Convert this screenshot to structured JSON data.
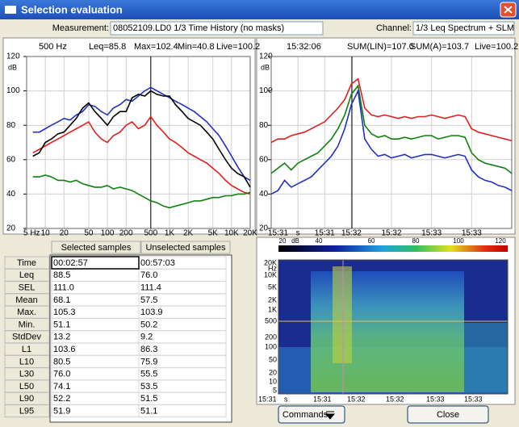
{
  "window": {
    "title": "Selection evaluation"
  },
  "measurement": {
    "label": "Measurement:",
    "value": "08052109.LD0 1/3 Time History (no masks)"
  },
  "channel": {
    "label": "Channel:",
    "value": "1/3 Leq Spectrum + SLM"
  },
  "spectrum_chart": {
    "type": "line",
    "xlog": true,
    "grid": true,
    "header": [
      {
        "text": "500 Hz",
        "color": "#000000"
      },
      {
        "text": "Leq=85.8",
        "color": "#e02020"
      },
      {
        "text": "Max=102.4",
        "color": "#2030c0"
      },
      {
        "text": "Min=40.8",
        "color": "#108010"
      },
      {
        "text": "Live=100.2",
        "color": "#000000"
      }
    ],
    "ylabel": "dB",
    "ylim": [
      20,
      120
    ],
    "yticks": [
      20,
      40,
      60,
      80,
      100,
      120
    ],
    "xlim": [
      5,
      20000
    ],
    "xticks": [
      {
        "value": 5,
        "label": "5 Hz"
      },
      10,
      20,
      50,
      100,
      200,
      500,
      {
        "value": 1000,
        "label": "1K"
      },
      {
        "value": 2000,
        "label": "2K"
      },
      {
        "value": 5000,
        "label": "5K"
      },
      {
        "value": 10000,
        "label": "10K"
      },
      {
        "value": 20000,
        "label": "20K"
      }
    ],
    "x": [
      6.3,
      8,
      10,
      12.5,
      16,
      20,
      25,
      31.5,
      40,
      50,
      63,
      80,
      100,
      125,
      160,
      200,
      250,
      315,
      400,
      500,
      630,
      800,
      1000,
      1250,
      1600,
      2000,
      2500,
      3150,
      4000,
      5000,
      6300,
      8000,
      10000,
      12500,
      16000,
      20000
    ],
    "series": [
      {
        "color": "#2030c0",
        "values": [
          76,
          76,
          78,
          80,
          82,
          84,
          83,
          86,
          88,
          92,
          91,
          88,
          86,
          90,
          92,
          95,
          94,
          97,
          100,
          102,
          100,
          98,
          96,
          94,
          92,
          90,
          88,
          85,
          82,
          78,
          74,
          68,
          62,
          56,
          50,
          48
        ]
      },
      {
        "color": "#e02020",
        "values": [
          64,
          66,
          68,
          70,
          72,
          74,
          76,
          78,
          80,
          82,
          76,
          72,
          70,
          74,
          76,
          80,
          82,
          78,
          80,
          85,
          80,
          76,
          72,
          70,
          67,
          64,
          62,
          60,
          58,
          55,
          52,
          48,
          45,
          43,
          41,
          40
        ]
      },
      {
        "color": "#108010",
        "values": [
          50,
          50,
          51,
          50,
          48,
          48,
          47,
          48,
          46,
          45,
          44,
          44,
          45,
          43,
          44,
          43,
          42,
          40,
          38,
          36,
          35,
          33,
          32,
          33,
          34,
          35,
          36,
          36,
          37,
          38,
          38,
          39,
          39,
          40,
          40,
          41
        ]
      },
      {
        "color": "#000000",
        "values": [
          62,
          64,
          70,
          72,
          75,
          76,
          80,
          84,
          90,
          93,
          88,
          84,
          80,
          85,
          88,
          88,
          96,
          98,
          97,
          100,
          98,
          97,
          97,
          92,
          88,
          84,
          82,
          80,
          76,
          72,
          66,
          60,
          55,
          52,
          50,
          44
        ]
      }
    ]
  },
  "time_chart": {
    "type": "line",
    "xlog": false,
    "grid": true,
    "header": [
      {
        "text": "15:32:06",
        "color": "#000000"
      },
      {
        "text": "SUM(LIN)=107.0",
        "color": "#e02020"
      },
      {
        "text": "SUM(A)=103.7",
        "color": "#108010"
      },
      {
        "text": "Live=100.2",
        "color": "#2030c0"
      }
    ],
    "ylabel": "dB",
    "ylim": [
      20,
      120
    ],
    "yticks": [
      20,
      40,
      60,
      80,
      100,
      120
    ],
    "xlim": [
      0,
      180
    ],
    "xticks": [
      {
        "value": 0,
        "label": "15:31"
      },
      {
        "value": 20,
        "label": "s"
      },
      {
        "value": 40,
        "label": "15:31"
      },
      {
        "value": 60,
        "label": "15:32"
      },
      {
        "value": 90,
        "label": "15:32"
      },
      {
        "value": 120,
        "label": "15:33"
      },
      {
        "value": 150,
        "label": "15:33"
      }
    ],
    "x": [
      0,
      5,
      10,
      15,
      20,
      25,
      30,
      35,
      40,
      45,
      50,
      55,
      60,
      65,
      70,
      75,
      80,
      85,
      90,
      95,
      100,
      105,
      110,
      115,
      120,
      125,
      130,
      135,
      140,
      145,
      150,
      155,
      160,
      165,
      170,
      175,
      180
    ],
    "series": [
      {
        "color": "#e02020",
        "values": [
          70,
          72,
          72,
          74,
          75,
          76,
          78,
          80,
          82,
          86,
          90,
          95,
          104,
          107,
          90,
          86,
          85,
          86,
          85,
          84,
          85,
          84,
          85,
          85,
          86,
          85,
          84,
          85,
          86,
          85,
          78,
          76,
          75,
          74,
          73,
          72,
          71
        ]
      },
      {
        "color": "#108010",
        "values": [
          52,
          55,
          58,
          54,
          58,
          60,
          62,
          64,
          68,
          72,
          78,
          86,
          98,
          103,
          80,
          75,
          73,
          74,
          72,
          72,
          73,
          72,
          73,
          74,
          74,
          72,
          73,
          74,
          74,
          73,
          64,
          60,
          58,
          57,
          56,
          55,
          52
        ]
      },
      {
        "color": "#2030c0",
        "values": [
          40,
          42,
          48,
          44,
          46,
          48,
          50,
          54,
          58,
          62,
          68,
          78,
          92,
          100,
          72,
          66,
          62,
          63,
          61,
          62,
          63,
          61,
          62,
          63,
          63,
          62,
          61,
          62,
          63,
          62,
          54,
          50,
          48,
          47,
          45,
          44,
          42
        ]
      }
    ]
  },
  "table": {
    "headers": [
      "Selected samples",
      "Unselected samples"
    ],
    "rows": [
      [
        "Time",
        "00:02:57",
        "00:57:03"
      ],
      [
        "Leq",
        "88.5",
        "76.0"
      ],
      [
        "SEL",
        "111.0",
        "111.4"
      ],
      [
        "Mean",
        "68.1",
        "57.5"
      ],
      [
        "Max.",
        "105.3",
        "103.9"
      ],
      [
        "Min.",
        "51.1",
        "50.2"
      ],
      [
        "StdDev",
        "13.2",
        "9.2"
      ],
      [
        "L1",
        "103.6",
        "86.3"
      ],
      [
        "L10",
        "80.5",
        "75.9"
      ],
      [
        "L30",
        "76.0",
        "55.5"
      ],
      [
        "L50",
        "74.1",
        "53.5"
      ],
      [
        "L90",
        "52.2",
        "51.5"
      ],
      [
        "L95",
        "51.9",
        "51.1"
      ]
    ]
  },
  "spectrogram": {
    "colorbar_labels": [
      "20",
      "dB",
      "40",
      "60",
      "80",
      "100",
      "120"
    ],
    "y_labels": [
      "20K",
      "Hz",
      "10K",
      "5K",
      "2K",
      "1K",
      "500",
      "200",
      "100",
      "50",
      "20",
      "10",
      "5"
    ],
    "x_labels": [
      "15:31",
      "s",
      "15:31",
      "15:32",
      "15:32",
      "15:33",
      "15:33"
    ]
  },
  "buttons": {
    "commands": "Commands",
    "close": "Close"
  }
}
